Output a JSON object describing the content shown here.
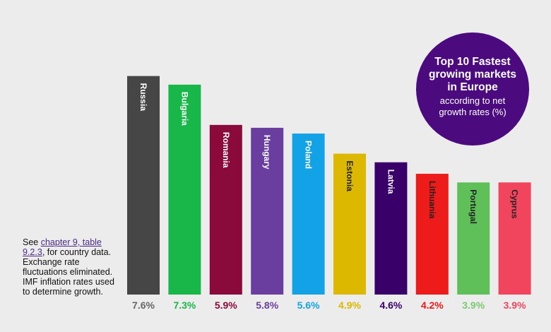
{
  "badge": {
    "title": "Top 10 Fastest growing markets in Europe",
    "subtitle": "according to net growth rates (%)"
  },
  "note": {
    "prefix": "See ",
    "link": "chapter 9, table 9.2.3",
    "suffix": ", for country data. Exchange rate fluctuations eliminated. IMF inflation rates used to determine growth."
  },
  "chart_data": {
    "type": "bar",
    "categories": [
      "Russia",
      "Bulgaria",
      "Romania",
      "Hungary",
      "Poland",
      "Estonia",
      "Latvia",
      "Lithuania",
      "Portugal",
      "Cyprus"
    ],
    "values": [
      7.6,
      7.3,
      5.9,
      5.8,
      5.6,
      4.9,
      4.6,
      4.2,
      3.9,
      3.9
    ],
    "value_labels": [
      "7.6%",
      "7.3%",
      "5.9%",
      "5.8%",
      "5.6%",
      "4.9%",
      "4.6%",
      "4.2%",
      "3.9%",
      "3.9%"
    ],
    "colors": [
      "#464646",
      "#19b64a",
      "#8a0a3b",
      "#6a3e9e",
      "#14a2e6",
      "#dcb800",
      "#3a006a",
      "#ee1b1b",
      "#5fc05a",
      "#f1455e"
    ],
    "label_colors": [
      "#666666",
      "#19b64a",
      "#8a0a3b",
      "#6a3e9e",
      "#14a2e6",
      "#dcb800",
      "#3a006a",
      "#ee1b1b",
      "#7cc86e",
      "#f1455e"
    ],
    "inside_label_colors": [
      "#ffffff",
      "#ffffff",
      "#ffffff",
      "#ffffff",
      "#ffffff",
      "#222222",
      "#ffffff",
      "#222222",
      "#222222",
      "#222222"
    ],
    "ylim": [
      0,
      8.5
    ],
    "grid": false,
    "legend": "none"
  }
}
